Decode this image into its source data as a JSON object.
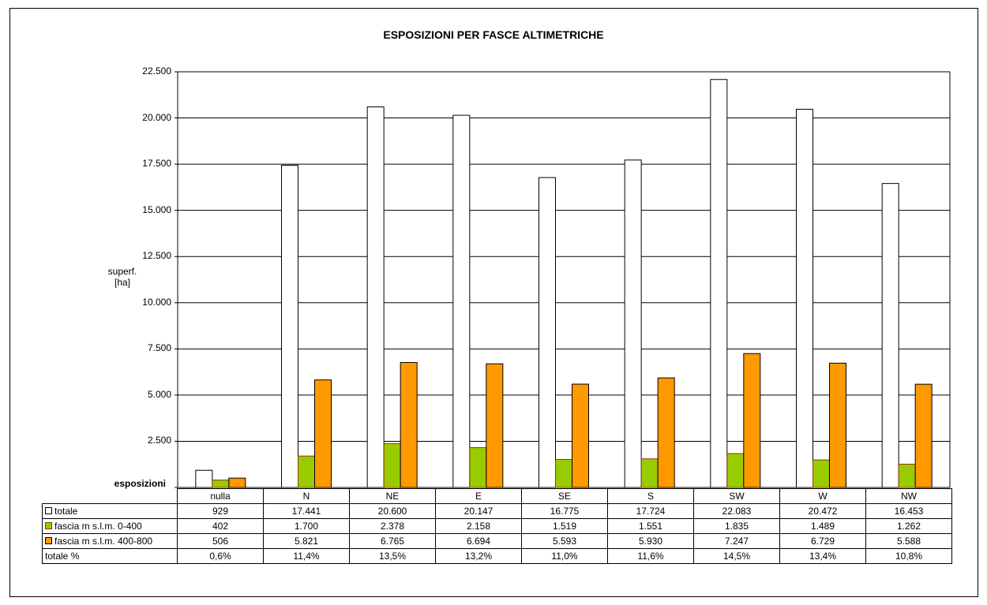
{
  "chart_data": {
    "type": "bar",
    "title": "ESPOSIZIONI PER FASCE ALTIMETRICHE",
    "ylabel_lines": [
      "superf.",
      "[ha]"
    ],
    "xlabel": "esposizioni",
    "ylim": [
      0,
      22500
    ],
    "yticks": [
      "2.500",
      "5.000",
      "7.500",
      "10.000",
      "12.500",
      "15.000",
      "17.500",
      "20.000",
      "22.500"
    ],
    "ytick_values": [
      2500,
      5000,
      7500,
      10000,
      12500,
      15000,
      17500,
      20000,
      22500
    ],
    "categories": [
      "nulla",
      "N",
      "NE",
      "E",
      "SE",
      "S",
      "SW",
      "W",
      "NW"
    ],
    "grid": true,
    "series": [
      {
        "name": "totale",
        "color": "#ffffff",
        "values": [
          929,
          17441,
          20600,
          20147,
          16775,
          17724,
          22083,
          20472,
          16453
        ],
        "labels": [
          "929",
          "17.441",
          "20.600",
          "20.147",
          "16.775",
          "17.724",
          "22.083",
          "20.472",
          "16.453"
        ]
      },
      {
        "name": "fascia m s.l.m. 0-400",
        "color": "#99cc00",
        "values": [
          402,
          1700,
          2378,
          2158,
          1519,
          1551,
          1835,
          1489,
          1262
        ],
        "labels": [
          "402",
          "1.700",
          "2.378",
          "2.158",
          "1.519",
          "1.551",
          "1.835",
          "1.489",
          "1.262"
        ]
      },
      {
        "name": "fascia m s.l.m. 400-800",
        "color": "#ff9900",
        "values": [
          506,
          5821,
          6765,
          6694,
          5593,
          5930,
          7247,
          6729,
          5588
        ],
        "labels": [
          "506",
          "5.821",
          "6.765",
          "6.694",
          "5.593",
          "5.930",
          "7.247",
          "6.729",
          "5.588"
        ]
      }
    ],
    "percent_row": {
      "name": "totale %",
      "labels": [
        "0,6%",
        "11,4%",
        "13,5%",
        "13,2%",
        "11,0%",
        "11,6%",
        "14,5%",
        "13,4%",
        "10,8%"
      ]
    }
  }
}
